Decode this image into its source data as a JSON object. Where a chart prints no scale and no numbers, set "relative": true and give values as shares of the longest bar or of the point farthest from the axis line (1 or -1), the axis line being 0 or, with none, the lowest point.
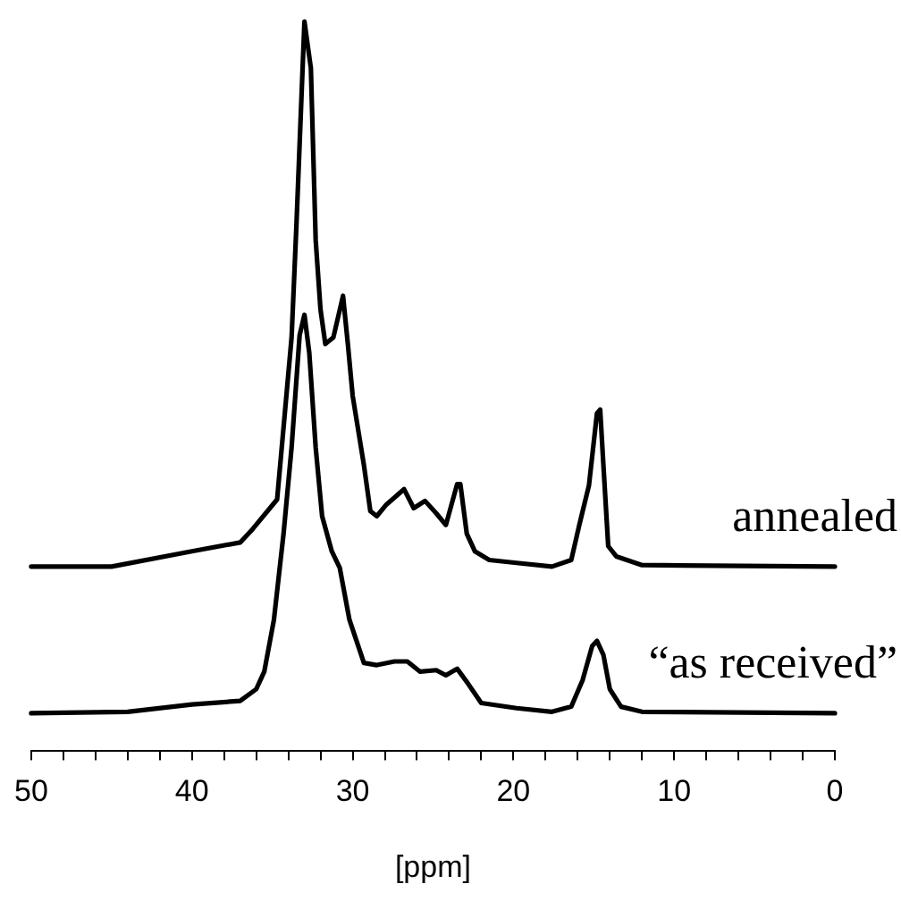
{
  "chart_data": {
    "type": "line",
    "relative": true,
    "xlabel": "[ppm]",
    "xlim": [
      50,
      0
    ],
    "xticks": [
      50,
      {
        "value": 48,
        "label": null
      },
      {
        "value": 46,
        "label": null
      },
      {
        "value": 44,
        "label": null
      },
      {
        "value": 42,
        "label": null
      },
      40,
      {
        "value": 38,
        "label": null
      },
      {
        "value": 36,
        "label": null
      },
      {
        "value": 34,
        "label": null
      },
      {
        "value": 32,
        "label": null
      },
      30,
      {
        "value": 28,
        "label": null
      },
      {
        "value": 26,
        "label": null
      },
      {
        "value": 24,
        "label": null
      },
      {
        "value": 22,
        "label": null
      },
      20,
      {
        "value": 18,
        "label": null
      },
      {
        "value": 16,
        "label": null
      },
      {
        "value": 14,
        "label": null
      },
      {
        "value": 12,
        "label": null
      },
      10,
      {
        "value": 8,
        "label": null
      },
      {
        "value": 6,
        "label": null
      },
      {
        "value": 4,
        "label": null
      },
      {
        "value": 2,
        "label": null
      },
      0
    ],
    "marker": "none",
    "line_style": "solid",
    "legend": false,
    "series": [
      {
        "name": "annealed",
        "color": "#000000",
        "x": [
          50,
          45,
          40,
          37,
          36.2,
          34.7,
          33.8,
          33.5,
          33.0,
          32.6,
          32.3,
          32.0,
          31.7,
          31.2,
          30.6,
          30.3,
          30.0,
          29.3,
          28.9,
          28.5,
          27.9,
          26.8,
          26.2,
          25.5,
          24.8,
          24.2,
          23.5,
          23.3,
          22.9,
          22.4,
          21.5,
          19.8,
          17.6,
          16.4,
          15.9,
          15.3,
          14.8,
          14.6,
          14.4,
          14.1,
          13.6,
          12.0,
          0
        ],
        "values": [
          0.253,
          0.253,
          0.274,
          0.286,
          0.305,
          0.345,
          0.567,
          0.72,
          1.0,
          0.936,
          0.7,
          0.605,
          0.558,
          0.567,
          0.624,
          0.558,
          0.487,
          0.392,
          0.329,
          0.322,
          0.338,
          0.359,
          0.333,
          0.343,
          0.326,
          0.31,
          0.366,
          0.366,
          0.298,
          0.274,
          0.262,
          0.258,
          0.253,
          0.262,
          0.31,
          0.364,
          0.463,
          0.468,
          0.392,
          0.281,
          0.267,
          0.255,
          0.253
        ]
      },
      {
        "name": "“as received”",
        "color": "#000000",
        "x": [
          50,
          44,
          40,
          37,
          36.0,
          35.5,
          34.9,
          34.3,
          33.8,
          33.3,
          33.0,
          32.7,
          32.3,
          31.9,
          31.3,
          30.8,
          30.2,
          29.3,
          28.5,
          27.4,
          26.6,
          25.8,
          24.8,
          24.2,
          23.5,
          22.9,
          22.0,
          19.8,
          17.6,
          16.4,
          15.7,
          15.1,
          14.8,
          14.4,
          14.0,
          13.3,
          12.0,
          0
        ],
        "values": [
          0.052,
          0.054,
          0.064,
          0.069,
          0.085,
          0.109,
          0.18,
          0.298,
          0.416,
          0.57,
          0.598,
          0.546,
          0.416,
          0.322,
          0.274,
          0.251,
          0.18,
          0.121,
          0.118,
          0.123,
          0.123,
          0.109,
          0.111,
          0.104,
          0.113,
          0.095,
          0.066,
          0.059,
          0.054,
          0.061,
          0.097,
          0.144,
          0.151,
          0.132,
          0.085,
          0.061,
          0.054,
          0.052
        ]
      }
    ]
  }
}
